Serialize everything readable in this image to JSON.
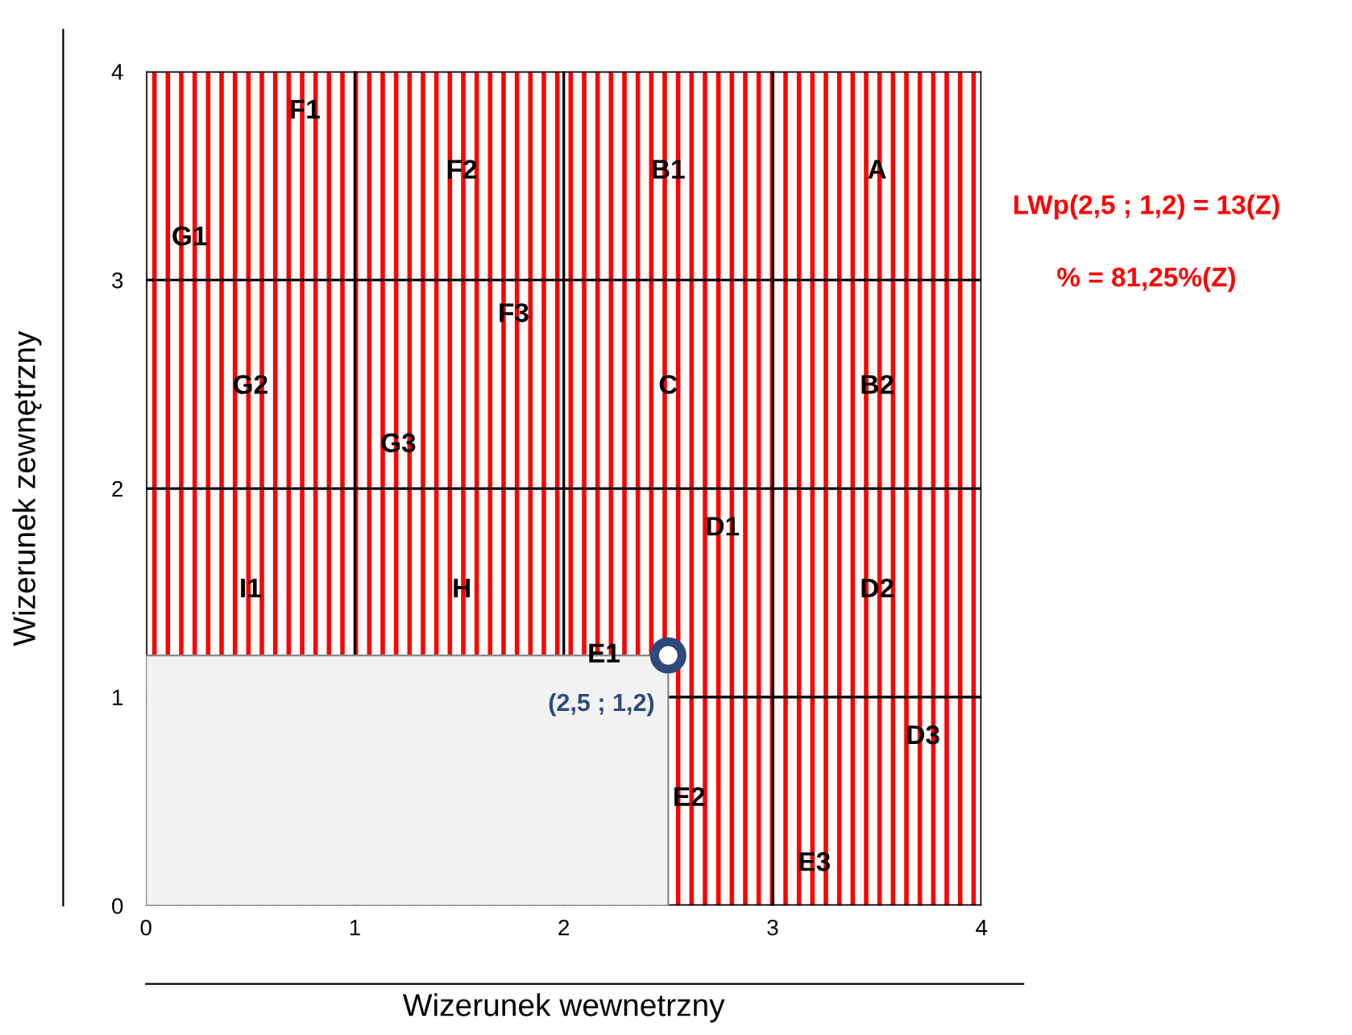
{
  "chart_data": {
    "type": "scatter",
    "xlabel": "Wizerunek wewnetrzny",
    "ylabel": "Wizerunek zewnętrzny",
    "xlim": [
      0,
      4
    ],
    "ylim": [
      0,
      4
    ],
    "xticks": [
      0,
      1,
      2,
      3,
      4
    ],
    "yticks": [
      0,
      1,
      2,
      3,
      4
    ],
    "grid": true,
    "marker": "circle",
    "series": [
      {
        "color": "#2e4a7a",
        "x": [
          2.5
        ],
        "values": [
          1.2
        ],
        "value_labels": [
          "(2,5 ; 1,2)"
        ]
      }
    ],
    "annotations": [
      "F1",
      "F2",
      "B1",
      "A",
      "G1",
      "F3",
      "G2",
      "C",
      "B2",
      "G3",
      "D1",
      "I1",
      "H",
      "D2",
      "E1",
      "D3",
      "E2",
      "E3",
      "LWp(2,5 ; 1,2) = 13(Z)",
      "% = 81,25%(Z)"
    ]
  }
}
